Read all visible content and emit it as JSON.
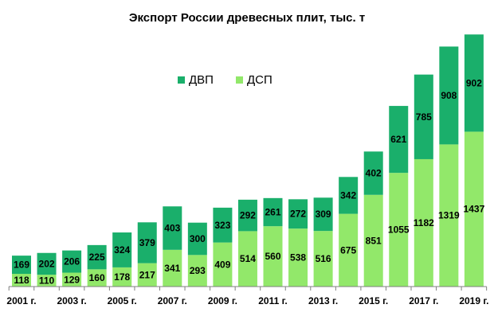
{
  "chart_data": {
    "type": "bar",
    "stacked": true,
    "title": "Экспорт России древесных плит, тыс. т",
    "categories": [
      "2001",
      "2002",
      "2003",
      "2004",
      "2005",
      "2006",
      "2007",
      "2008",
      "2009",
      "2010",
      "2011",
      "2012",
      "2013",
      "2014",
      "2015",
      "2016",
      "2017",
      "2018",
      "2019"
    ],
    "tick_labels": [
      "2001 г.",
      "",
      "2003 г.",
      "",
      "2005 г.",
      "",
      "2007 г.",
      "",
      "2009 г.",
      "",
      "2011 г.",
      "",
      "2013 г.",
      "",
      "2015 г.",
      "",
      "2017 г.",
      "",
      "2019 г."
    ],
    "series": [
      {
        "name": "ДСП",
        "color": "#92e86a",
        "values": [
          118,
          110,
          129,
          160,
          178,
          217,
          341,
          293,
          409,
          514,
          560,
          538,
          516,
          675,
          851,
          1055,
          1182,
          1319,
          1437
        ]
      },
      {
        "name": "ДВП",
        "color": "#1aaf6b",
        "values": [
          169,
          202,
          206,
          225,
          324,
          379,
          403,
          300,
          323,
          292,
          261,
          272,
          309,
          342,
          402,
          621,
          785,
          908,
          902
        ]
      }
    ],
    "ylim": [
      0,
      2400
    ],
    "legend_position": "top-center",
    "grid": false
  }
}
